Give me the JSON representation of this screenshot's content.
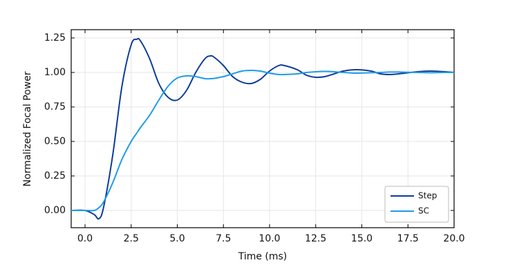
{
  "chart_data": {
    "type": "line",
    "xlabel": "Time (ms)",
    "ylabel": "Normalized Focal Power",
    "x": [
      -0.75,
      0,
      0.5,
      0.75,
      1.0,
      1.5,
      2.0,
      2.5,
      2.8,
      3.0,
      3.5,
      4.0,
      4.5,
      5.0,
      5.5,
      6.0,
      6.5,
      6.8,
      7.0,
      7.5,
      8.0,
      8.5,
      9.0,
      9.5,
      10.0,
      10.5,
      10.8,
      11.5,
      12.0,
      12.5,
      13.0,
      13.5,
      14.0,
      14.7,
      15.5,
      16.0,
      16.5,
      17.0,
      18.0,
      18.7,
      19.5,
      20.0
    ],
    "series": [
      {
        "name": "Step",
        "color": "#0d3b99",
        "values": [
          0,
          0,
          -0.03,
          -0.06,
          0.02,
          0.4,
          0.9,
          1.2,
          1.24,
          1.23,
          1.1,
          0.92,
          0.82,
          0.8,
          0.87,
          1.0,
          1.1,
          1.12,
          1.11,
          1.05,
          0.97,
          0.93,
          0.92,
          0.95,
          1.01,
          1.05,
          1.05,
          1.02,
          0.98,
          0.965,
          0.97,
          0.99,
          1.01,
          1.02,
          1.01,
          0.99,
          0.985,
          0.99,
          1.005,
          1.01,
          1.005,
          1.0
        ]
      },
      {
        "name": "SC",
        "color": "#1f9be8",
        "values": [
          0,
          0,
          0,
          0.02,
          0.06,
          0.2,
          0.37,
          0.5,
          0.56,
          0.6,
          0.69,
          0.8,
          0.9,
          0.96,
          0.975,
          0.97,
          0.955,
          0.955,
          0.957,
          0.97,
          0.99,
          1.01,
          1.015,
          1.01,
          0.995,
          0.985,
          0.985,
          0.99,
          1.0,
          1.005,
          1.008,
          1.005,
          1.0,
          0.995,
          0.998,
          1.0,
          1.003,
          1.003,
          1.0,
          0.998,
          1.0,
          1.0
        ]
      }
    ],
    "xlim": [
      -0.75,
      20.0
    ],
    "ylim": [
      -0.125,
      1.31
    ],
    "xticks": [
      {
        "value": 0,
        "label": "0.0"
      },
      2.5,
      {
        "value": 5,
        "label": "5.0"
      },
      7.5,
      {
        "value": 10,
        "label": "10.0"
      },
      12.5,
      {
        "value": 15,
        "label": "15.0"
      },
      17.5,
      {
        "value": 20,
        "label": "20.0"
      }
    ],
    "yticks": [
      {
        "value": 0,
        "label": "0.00"
      },
      {
        "value": 0.25,
        "label": "0.25"
      },
      {
        "value": 0.5,
        "label": "0.50"
      },
      {
        "value": 0.75,
        "label": "0.75"
      },
      {
        "value": 1,
        "label": "1.00"
      },
      {
        "value": 1.25,
        "label": "1.25"
      }
    ],
    "grid": true,
    "legend": "lower right"
  }
}
